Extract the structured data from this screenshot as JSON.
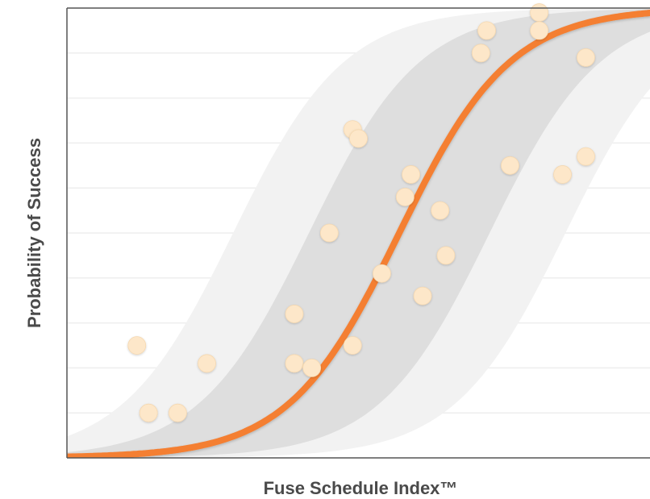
{
  "chart_data": {
    "type": "scatter",
    "title": "",
    "xlabel": "Fuse Schedule Index™",
    "ylabel": "Probability of Success",
    "xlim": [
      0,
      10
    ],
    "ylim": [
      0,
      10
    ],
    "grid": true,
    "tick_labels_shown": false,
    "points": [
      {
        "x": 1.2,
        "y": 2.5
      },
      {
        "x": 1.4,
        "y": 1.0
      },
      {
        "x": 1.9,
        "y": 1.0
      },
      {
        "x": 2.4,
        "y": 2.1
      },
      {
        "x": 3.9,
        "y": 3.2
      },
      {
        "x": 3.9,
        "y": 2.1
      },
      {
        "x": 4.2,
        "y": 2.0
      },
      {
        "x": 4.5,
        "y": 5.0
      },
      {
        "x": 4.9,
        "y": 7.3
      },
      {
        "x": 5.0,
        "y": 7.1
      },
      {
        "x": 4.9,
        "y": 2.5
      },
      {
        "x": 5.4,
        "y": 4.1
      },
      {
        "x": 5.8,
        "y": 5.8
      },
      {
        "x": 5.9,
        "y": 6.3
      },
      {
        "x": 6.1,
        "y": 3.6
      },
      {
        "x": 6.4,
        "y": 5.5
      },
      {
        "x": 6.5,
        "y": 4.5
      },
      {
        "x": 7.1,
        "y": 9.0
      },
      {
        "x": 7.2,
        "y": 9.5
      },
      {
        "x": 7.6,
        "y": 6.5
      },
      {
        "x": 8.1,
        "y": 9.9
      },
      {
        "x": 8.1,
        "y": 9.5
      },
      {
        "x": 8.5,
        "y": 6.3
      },
      {
        "x": 8.9,
        "y": 6.7
      },
      {
        "x": 8.9,
        "y": 8.9
      }
    ],
    "trend": {
      "type": "logistic",
      "midpoint": 5.7,
      "steepness": 1.05
    },
    "colors": {
      "trend": "#f47f30",
      "points": "#fde7c9",
      "inner_band": "#dedede",
      "outer_band": "#f2f2f2",
      "axis": "#555555",
      "grid": "#eeeeee",
      "label": "#4a4a4a"
    }
  }
}
